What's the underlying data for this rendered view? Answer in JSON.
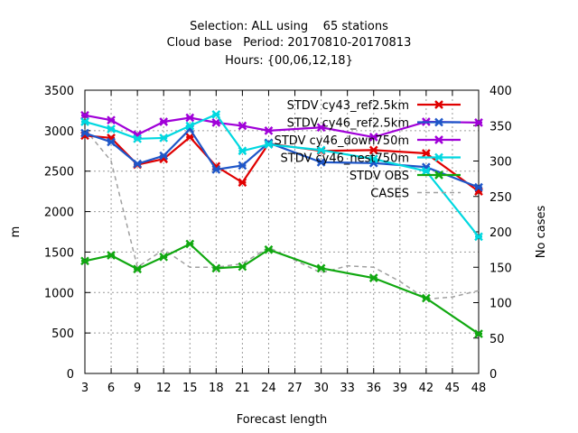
{
  "title_lines": [
    "Selection: ALL using    65 stations",
    "Cloud base   Period: 20170810-20170813",
    "Hours: {00,06,12,18}"
  ],
  "chart_data": {
    "type": "line",
    "xlabel": "Forecast length",
    "ylabel": "m",
    "y2label": "No cases",
    "xlim": [
      3,
      48
    ],
    "ylim": [
      0,
      3500
    ],
    "y2lim": [
      0,
      400
    ],
    "xticks": [
      3,
      6,
      9,
      12,
      15,
      18,
      21,
      24,
      27,
      30,
      33,
      36,
      39,
      42,
      45,
      48
    ],
    "yticks": [
      0,
      500,
      1000,
      1500,
      2000,
      2500,
      3000,
      3500
    ],
    "y2ticks": [
      0,
      50,
      100,
      150,
      200,
      250,
      300,
      350,
      400
    ],
    "grid": true,
    "legend_position": "top-right",
    "series": [
      {
        "name": "STDV cy43_ref2.5km",
        "color": "#e00000",
        "axis": "y",
        "marker": "x",
        "x": [
          3,
          6,
          9,
          12,
          15,
          18,
          21,
          24,
          30,
          36,
          42,
          48
        ],
        "values": [
          2940,
          2910,
          2580,
          2650,
          2920,
          2560,
          2360,
          2840,
          2750,
          2760,
          2720,
          2250
        ]
      },
      {
        "name": "STDV cy46_ref2.5km",
        "color": "#1e56c8",
        "axis": "y",
        "marker": "x",
        "x": [
          3,
          6,
          9,
          12,
          15,
          18,
          21,
          24,
          30,
          36,
          42,
          48
        ],
        "values": [
          2970,
          2860,
          2590,
          2690,
          3020,
          2520,
          2570,
          2850,
          2610,
          2600,
          2550,
          2300
        ]
      },
      {
        "name": "STDV cy46_down750m",
        "color": "#a000d8",
        "axis": "y",
        "marker": "x",
        "x": [
          3,
          6,
          9,
          12,
          15,
          18,
          21,
          24,
          30,
          36,
          42,
          48
        ],
        "values": [
          3190,
          3130,
          2950,
          3110,
          3160,
          3100,
          3060,
          3000,
          3040,
          2920,
          3110,
          3100
        ]
      },
      {
        "name": "STDV cy46_nest750m",
        "color": "#00d8e0",
        "axis": "y",
        "marker": "x",
        "x": [
          3,
          6,
          9,
          12,
          15,
          18,
          21,
          24,
          30,
          36,
          42,
          48
        ],
        "values": [
          3110,
          3020,
          2900,
          2910,
          3060,
          3200,
          2750,
          2830,
          2760,
          2650,
          2500,
          1690
        ]
      },
      {
        "name": "STDV OBS",
        "color": "#10a810",
        "axis": "y",
        "marker": "x",
        "x": [
          3,
          6,
          9,
          12,
          15,
          18,
          21,
          24,
          30,
          36,
          42,
          48
        ],
        "values": [
          1390,
          1460,
          1290,
          1440,
          1600,
          1300,
          1320,
          1530,
          1300,
          1180,
          930,
          490
        ]
      },
      {
        "name": "CASES",
        "color": "#a0a0a0",
        "axis": "y2",
        "dashed": true,
        "x": [
          3,
          6,
          9,
          12,
          15,
          18,
          21,
          24,
          27,
          30,
          33,
          36,
          39,
          42,
          45,
          48
        ],
        "values": [
          345,
          300,
          150,
          175,
          150,
          150,
          155,
          178,
          160,
          142,
          152,
          150,
          130,
          105,
          108,
          117
        ]
      }
    ]
  }
}
